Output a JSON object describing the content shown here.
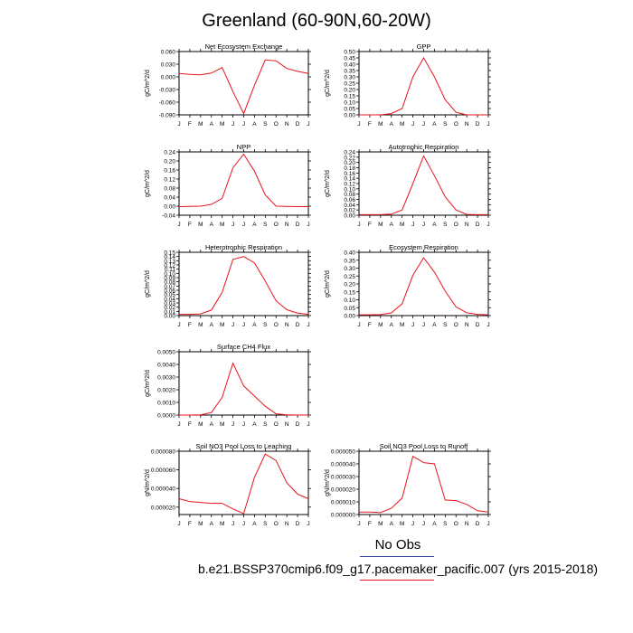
{
  "title": "Greenland (60-90N,60-20W)",
  "months": [
    "J",
    "F",
    "M",
    "A",
    "M",
    "J",
    "J",
    "A",
    "S",
    "O",
    "N",
    "D",
    "J"
  ],
  "colors": {
    "model": "#e8141c",
    "obs_line": "#2a3d9a"
  },
  "legend": {
    "obs_label": "No Obs",
    "case_label": "b.e21.BSSP370cmip6.f09_g17.pacemaker_pacific.007 (yrs 2015-2018)"
  },
  "chart_data": [
    {
      "type": "line",
      "title": "Net Ecosystem Exchange",
      "ylabel": "gC/m^2/d",
      "ylim": [
        -0.09,
        0.06
      ],
      "yticks": [
        "0.060",
        "0.030",
        "0.000",
        "-0.030",
        "-0.060",
        "-0.090"
      ],
      "ytick_values": [
        0.06,
        0.03,
        0.0,
        -0.03,
        -0.06,
        -0.09
      ],
      "values": [
        0.008,
        0.006,
        0.005,
        0.009,
        0.022,
        -0.035,
        -0.087,
        -0.02,
        0.04,
        0.038,
        0.02,
        0.013,
        0.008
      ]
    },
    {
      "type": "line",
      "title": "GPP",
      "ylabel": "gC/m^2/d",
      "ylim": [
        0.0,
        0.5
      ],
      "yticks": [
        "0.50",
        "0.45",
        "0.40",
        "0.35",
        "0.30",
        "0.25",
        "0.20",
        "0.15",
        "0.10",
        "0.05",
        "0.00"
      ],
      "ytick_values": [
        0.5,
        0.45,
        0.4,
        0.35,
        0.3,
        0.25,
        0.2,
        0.15,
        0.1,
        0.05,
        0.0
      ],
      "values": [
        0.0,
        0.0,
        0.0,
        0.01,
        0.05,
        0.3,
        0.45,
        0.3,
        0.12,
        0.02,
        0.0,
        0.0,
        0.0
      ]
    },
    {
      "type": "line",
      "title": "NPP",
      "ylabel": "gC/m^2/d",
      "ylim": [
        -0.04,
        0.24
      ],
      "yticks": [
        "0.24",
        "0.20",
        "0.16",
        "0.12",
        "0.08",
        "0.04",
        "0.00",
        "-0.04"
      ],
      "ytick_values": [
        0.24,
        0.2,
        0.16,
        0.12,
        0.08,
        0.04,
        0.0,
        -0.04
      ],
      "values": [
        -0.002,
        -0.001,
        0.0,
        0.008,
        0.035,
        0.17,
        0.23,
        0.155,
        0.05,
        0.0,
        -0.001,
        -0.002,
        -0.002
      ]
    },
    {
      "type": "line",
      "title": "Autotrophic Respiration",
      "ylabel": "gC/m^2/d",
      "ylim": [
        0.0,
        0.24
      ],
      "yticks": [
        "0.24",
        "0.22",
        "0.20",
        "0.18",
        "0.16",
        "0.14",
        "0.12",
        "0.10",
        "0.08",
        "0.06",
        "0.04",
        "0.02",
        "0.00"
      ],
      "ytick_values": [
        0.24,
        0.22,
        0.2,
        0.18,
        0.16,
        0.14,
        0.12,
        0.1,
        0.08,
        0.06,
        0.04,
        0.02,
        0.0
      ],
      "values": [
        0.002,
        0.002,
        0.002,
        0.004,
        0.02,
        0.12,
        0.225,
        0.15,
        0.07,
        0.02,
        0.003,
        0.002,
        0.002
      ]
    },
    {
      "type": "line",
      "title": "Heterotrophic Respiration",
      "ylabel": "gC/m^2/d",
      "ylim": [
        0.0,
        0.15
      ],
      "yticks": [
        "0.15",
        "0.14",
        "0.13",
        "0.12",
        "0.11",
        "0.10",
        "0.09",
        "0.08",
        "0.07",
        "0.06",
        "0.05",
        "0.04",
        "0.03",
        "0.02",
        "0.01",
        "0.00"
      ],
      "ytick_values": [
        0.15,
        0.14,
        0.13,
        0.12,
        0.11,
        0.1,
        0.09,
        0.08,
        0.07,
        0.06,
        0.05,
        0.04,
        0.03,
        0.02,
        0.01,
        0.0
      ],
      "values": [
        0.003,
        0.003,
        0.004,
        0.013,
        0.055,
        0.133,
        0.14,
        0.125,
        0.082,
        0.035,
        0.014,
        0.006,
        0.003
      ]
    },
    {
      "type": "line",
      "title": "Ecosystem Respiration",
      "ylabel": "gC/m^2/d",
      "ylim": [
        0.0,
        0.4
      ],
      "yticks": [
        "0.40",
        "0.35",
        "0.30",
        "0.25",
        "0.20",
        "0.15",
        "0.10",
        "0.05",
        "0.00"
      ],
      "ytick_values": [
        0.4,
        0.35,
        0.3,
        0.25,
        0.2,
        0.15,
        0.1,
        0.05,
        0.0
      ],
      "values": [
        0.005,
        0.005,
        0.006,
        0.017,
        0.075,
        0.255,
        0.365,
        0.275,
        0.155,
        0.055,
        0.018,
        0.008,
        0.005
      ]
    },
    {
      "type": "line",
      "title": "Surface CH4 Flux",
      "ylabel": "gC/m^2/d",
      "ylim": [
        0.0,
        0.005
      ],
      "yticks": [
        "0.0050",
        "0.0040",
        "0.0030",
        "0.0020",
        "0.0010",
        "0.0000"
      ],
      "ytick_values": [
        0.005,
        0.004,
        0.003,
        0.002,
        0.001,
        0.0
      ],
      "values": [
        0.0,
        0.0,
        2e-05,
        0.0002,
        0.0014,
        0.0041,
        0.0023,
        0.0015,
        0.0007,
        0.0001,
        2e-05,
        0.0,
        0.0
      ]
    },
    null,
    {
      "type": "line",
      "title": "Soil NO3 Pool Loss to Leaching",
      "ylabel": "gN/m^2/d",
      "ylim": [
        1.2e-05,
        8e-05
      ],
      "yticks": [
        "0.000080",
        "0.000060",
        "0.000040",
        "0.000020"
      ],
      "ytick_values": [
        8e-05,
        6e-05,
        4e-05,
        2e-05
      ],
      "values": [
        2.9e-05,
        2.6e-05,
        2.5e-05,
        2.4e-05,
        2.4e-05,
        1.8e-05,
        1.3e-05,
        5.2e-05,
        7.7e-05,
        7e-05,
        4.6e-05,
        3.4e-05,
        2.9e-05
      ]
    },
    {
      "type": "line",
      "title": "Soil NO3 Pool Loss to Runoff",
      "ylabel": "gN/m^2/d",
      "ylim": [
        0.0,
        5e-05
      ],
      "yticks": [
        "0.000050",
        "0.000040",
        "0.000030",
        "0.000020",
        "0.000010",
        "0.000000"
      ],
      "ytick_values": [
        5e-05,
        4e-05,
        3e-05,
        2e-05,
        1e-05,
        0.0
      ],
      "values": [
        2e-06,
        2e-06,
        1.5e-06,
        5e-06,
        1.3e-05,
        4.6e-05,
        4.1e-05,
        4e-05,
        1.15e-05,
        1.1e-05,
        8e-06,
        3e-06,
        2e-06
      ]
    }
  ]
}
